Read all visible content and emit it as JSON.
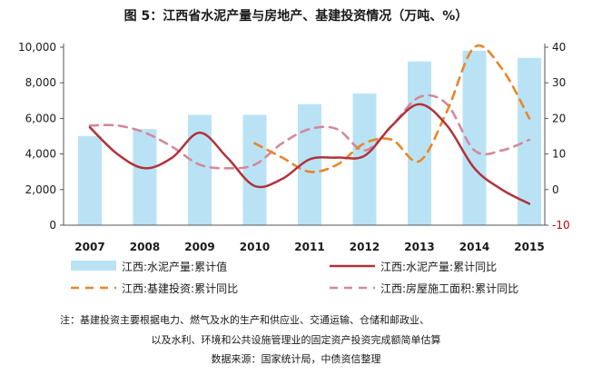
{
  "chart_data": {
    "type": "bar",
    "title": "图 5：江西省水泥产量与房地产、基建投资情况（万吨、%）",
    "categories": [
      "2007",
      "2008",
      "2009",
      "2010",
      "2011",
      "2012",
      "2013",
      "2014",
      "2015"
    ],
    "left_axis": {
      "ylim": [
        0,
        10000
      ],
      "ticks": [
        "0",
        "2,000",
        "4,000",
        "6,000",
        "8,000",
        "10,000"
      ],
      "tick_values": [
        0,
        2000,
        4000,
        6000,
        8000,
        10000
      ]
    },
    "right_axis": {
      "ylim": [
        -10,
        40
      ],
      "ticks": [
        "-10",
        "0",
        "10",
        "20",
        "30",
        "40"
      ],
      "tick_values": [
        -10,
        0,
        10,
        20,
        30,
        40
      ],
      "negative_color": "#cc0000"
    },
    "series": [
      {
        "name": "江西:水泥产量:累计值",
        "type": "bar",
        "axis": "left",
        "color": "#b9e3f5",
        "x": [
          "2007",
          "2008",
          "2009",
          "2010",
          "2011",
          "2012",
          "2013",
          "2014",
          "2015"
        ],
        "values": [
          5000,
          5400,
          6200,
          6200,
          6800,
          7400,
          9200,
          9800,
          9400
        ]
      },
      {
        "name": "江西:水泥产量:累计同比",
        "type": "line",
        "axis": "right",
        "color": "#b0323a",
        "dash": "solid",
        "x": [
          2007,
          2007.5,
          2008,
          2008.5,
          2009,
          2009.5,
          2010,
          2010.5,
          2011,
          2011.5,
          2012,
          2012.5,
          2013,
          2013.5,
          2014,
          2014.5,
          2015
        ],
        "values": [
          17.5,
          10,
          6,
          9,
          16,
          9,
          1,
          3,
          8.5,
          9,
          9.5,
          18,
          24,
          18,
          6,
          0,
          -4
        ]
      },
      {
        "name": "江西:基建投资:累计同比",
        "type": "line",
        "axis": "right",
        "color": "#e8862b",
        "dash": "dashed",
        "x": [
          2010,
          2010.5,
          2011,
          2011.5,
          2012,
          2012.5,
          2013,
          2013.5,
          2014,
          2014.5,
          2015
        ],
        "values": [
          13,
          9,
          5,
          7,
          13,
          14,
          8,
          22,
          40,
          34,
          20
        ]
      },
      {
        "name": "江西:房屋施工面积:累计同比",
        "type": "line",
        "axis": "right",
        "color": "#d4889a",
        "dash": "dashed",
        "x": [
          2007,
          2007.5,
          2008,
          2008.5,
          2009,
          2009.5,
          2010,
          2010.5,
          2011,
          2011.5,
          2012,
          2012.5,
          2013,
          2013.5,
          2014,
          2014.5,
          2015
        ],
        "values": [
          18,
          18,
          16,
          12,
          7,
          6,
          7,
          13,
          17,
          17,
          11,
          18,
          26,
          24,
          11,
          11,
          14
        ]
      }
    ],
    "legend_position": "bottom",
    "grid": false
  },
  "notes": {
    "line1": "注：基建投资主要根据电力、燃气及水的生产和供应业、交通运输、仓储和邮政业、",
    "line2": "以及水利、环境和公共设施管理业的固定资产投资完成额简单估算",
    "line3": "数据来源：国家统计局，中债资信整理"
  }
}
